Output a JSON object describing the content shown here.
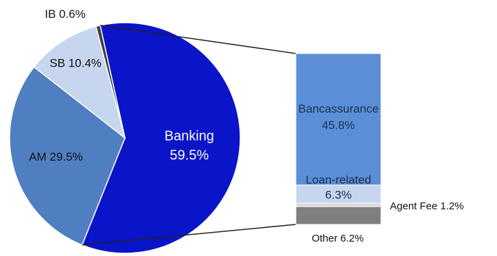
{
  "chart_data": [
    {
      "type": "pie",
      "title": "",
      "slices": [
        {
          "label": "Banking",
          "value": 59.5,
          "display": "59.5%",
          "color": "#0a14c8",
          "label_color": "#ffffff"
        },
        {
          "label": "AM",
          "value": 29.5,
          "display": "29.5%",
          "color": "#4f7fc1",
          "label_color": "#111111"
        },
        {
          "label": "SB",
          "value": 10.4,
          "display": "10.4%",
          "color": "#c6d6ee",
          "label_color": "#111111"
        },
        {
          "label": "IB",
          "value": 0.6,
          "display": "0.6%",
          "color": "#404040",
          "label_color": "#111111"
        }
      ]
    },
    {
      "type": "bar",
      "stacked": true,
      "title": "",
      "breakdown_of": "Banking",
      "segments": [
        {
          "label": "Bancassurance",
          "value": 45.8,
          "display": "45.8%",
          "color": "#5a8fd8"
        },
        {
          "label": "Loan-related",
          "value": 6.3,
          "display": "6.3%",
          "color": "#c6d6ee"
        },
        {
          "label": "Agent Fee",
          "value": 1.2,
          "display": "1.2%",
          "color": "#d9d9d9"
        },
        {
          "label": "Other",
          "value": 6.2,
          "display": "6.2%",
          "color": "#7f7f7f"
        }
      ]
    }
  ]
}
